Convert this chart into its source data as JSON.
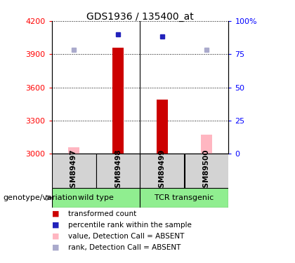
{
  "title": "GDS1936 / 135400_at",
  "samples": [
    "GSM89497",
    "GSM89498",
    "GSM89499",
    "GSM89500"
  ],
  "ylim_left": [
    3000,
    4200
  ],
  "yticks_left": [
    3000,
    3300,
    3600,
    3900,
    4200
  ],
  "yticks_right": [
    0,
    25,
    50,
    75,
    100
  ],
  "ytick_labels_right": [
    "0",
    "25",
    "50",
    "75",
    "100%"
  ],
  "red_bars": [
    null,
    3960,
    3490,
    null
  ],
  "blue_dots_pct": [
    null,
    90,
    80,
    null
  ],
  "blue_dots_abs": [
    null,
    4080,
    4060,
    null
  ],
  "pink_bars": [
    3060,
    null,
    null,
    3175
  ],
  "lavender_dots_abs": [
    3940,
    null,
    null,
    3940
  ],
  "bar_color_red": "#CC0000",
  "bar_color_pink": "#FFB6C1",
  "dot_color_blue": "#2222BB",
  "dot_color_lavender": "#AAAACC",
  "baseline": 3000,
  "group_wt": [
    0,
    1
  ],
  "group_tcr": [
    2,
    3
  ],
  "group_wt_label": "wild type",
  "group_tcr_label": "TCR transgenic",
  "group_color": "#90EE90",
  "sample_box_color": "#D3D3D3",
  "genotype_label": "genotype/variation",
  "legend_items": [
    {
      "color": "#CC0000",
      "label": "transformed count"
    },
    {
      "color": "#2222BB",
      "label": "percentile rank within the sample"
    },
    {
      "color": "#FFB6C1",
      "label": "value, Detection Call = ABSENT"
    },
    {
      "color": "#AAAACC",
      "label": "rank, Detection Call = ABSENT"
    }
  ]
}
